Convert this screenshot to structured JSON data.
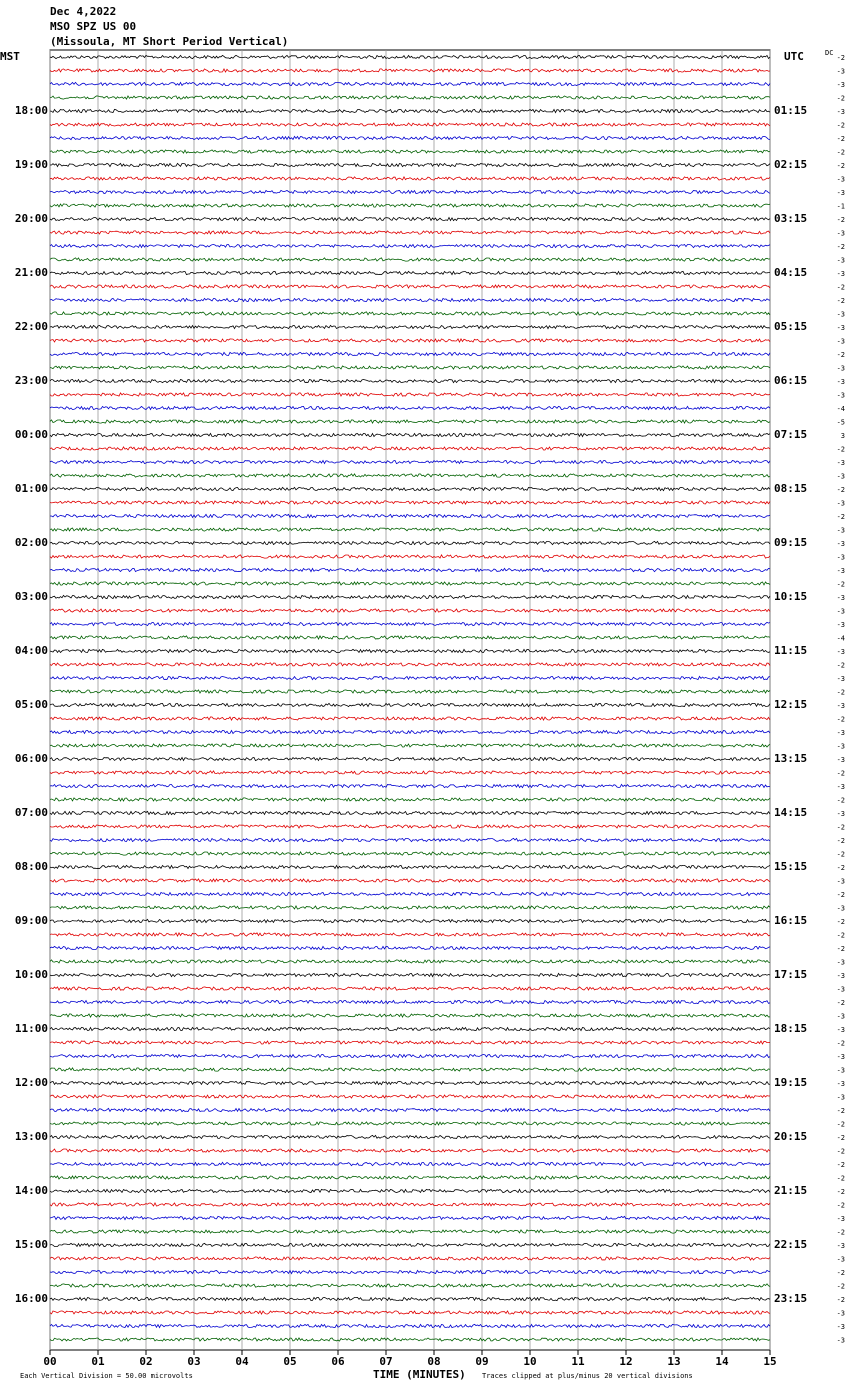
{
  "header": {
    "date": "Dec 4,2022",
    "station": "MSO SPZ US 00",
    "location": "(Missoula, MT Short Period Vertical)"
  },
  "left_axis": {
    "title": "MST",
    "labels": [
      "18:00",
      "19:00",
      "20:00",
      "21:00",
      "22:00",
      "23:00",
      "00:00",
      "01:00",
      "02:00",
      "03:00",
      "04:00",
      "05:00",
      "06:00",
      "07:00",
      "08:00",
      "09:00",
      "10:00",
      "11:00",
      "12:00",
      "13:00",
      "14:00",
      "15:00",
      "16:00"
    ]
  },
  "right_axis": {
    "title": "UTC",
    "labels": [
      "01:15",
      "02:15",
      "03:15",
      "04:15",
      "05:15",
      "06:15",
      "07:15",
      "08:15",
      "09:15",
      "10:15",
      "11:15",
      "12:15",
      "13:15",
      "14:15",
      "15:15",
      "16:15",
      "17:15",
      "18:15",
      "19:15",
      "20:15",
      "21:15",
      "22:15",
      "23:15"
    ]
  },
  "dc": {
    "title": "DC",
    "values": [
      "-2",
      "-3",
      "-3",
      "-2",
      "-3",
      "-2",
      "-2",
      "-2",
      "-2",
      "-3",
      "-3",
      "-1",
      "-2",
      "-3",
      "-2",
      "-3",
      "-3",
      "-2",
      "-2",
      "-3",
      "-3",
      "-3",
      "-2",
      "-3",
      "-3",
      "-3",
      "-4",
      "-5",
      "3",
      "-2",
      "-3",
      "-3",
      "-2",
      "-3",
      "-2",
      "-3",
      "-3",
      "-3",
      "-3",
      "-2",
      "-3",
      "-3",
      "-3",
      "-4",
      "-3",
      "-2",
      "-3",
      "-2",
      "-3",
      "-2",
      "-3",
      "-3",
      "-3",
      "-2",
      "-3",
      "-2",
      "-3",
      "-2",
      "-2",
      "-2",
      "-2",
      "-3",
      "-2",
      "-3",
      "-2",
      "-2",
      "-2",
      "-3",
      "-3",
      "-3",
      "-2",
      "-3",
      "-3",
      "-2",
      "-3",
      "-3",
      "-3",
      "-3",
      "-2",
      "-2",
      "-2",
      "-2",
      "-2",
      "-2",
      "-2",
      "-2",
      "-3",
      "-2",
      "-3",
      "-3",
      "-2",
      "-2",
      "-2",
      "-3",
      "-3",
      "-3"
    ]
  },
  "x_axis": {
    "title": "TIME (MINUTES)",
    "labels": [
      "00",
      "01",
      "02",
      "03",
      "04",
      "05",
      "06",
      "07",
      "08",
      "09",
      "10",
      "11",
      "12",
      "13",
      "14",
      "15"
    ]
  },
  "footer": {
    "scale_note": "Each Vertical Division =   50.00 microvolts",
    "clip_note": "Traces clipped at plus/minus 20 vertical divisions"
  }
}
